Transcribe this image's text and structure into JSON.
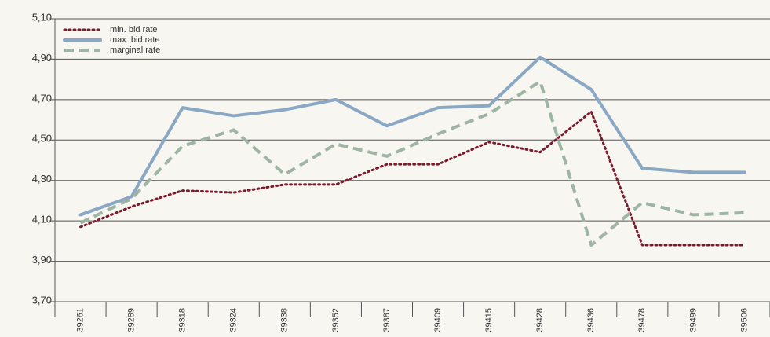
{
  "chart_data": {
    "type": "line",
    "categories": [
      "39261",
      "39289",
      "39318",
      "39324",
      "39338",
      "39352",
      "39387",
      "39409",
      "39415",
      "39428",
      "39436",
      "39478",
      "39499",
      "39506"
    ],
    "series": [
      {
        "name": "min. bid rate",
        "color": "#7a1a2c",
        "style": "dotted",
        "values": [
          4.07,
          4.17,
          4.25,
          4.24,
          4.28,
          4.28,
          4.38,
          4.38,
          4.49,
          4.44,
          4.64,
          3.98,
          3.98,
          3.98
        ]
      },
      {
        "name": "max. bid rate",
        "color": "#8aa7c4",
        "style": "solid",
        "values": [
          4.13,
          4.22,
          4.66,
          4.62,
          4.65,
          4.7,
          4.57,
          4.66,
          4.67,
          4.91,
          4.75,
          4.36,
          4.34,
          4.34
        ]
      },
      {
        "name": "marginal rate",
        "color": "#9fb5a4",
        "style": "dashed",
        "values": [
          4.09,
          4.21,
          4.47,
          4.55,
          4.33,
          4.48,
          4.42,
          4.53,
          4.63,
          4.79,
          3.98,
          4.19,
          4.13,
          4.14
        ]
      }
    ],
    "ylim": [
      3.7,
      5.1
    ],
    "yticks": [
      {
        "value": 3.7,
        "label": "3,70"
      },
      {
        "value": 3.9,
        "label": "3,90"
      },
      {
        "value": 4.1,
        "label": "4,10"
      },
      {
        "value": 4.3,
        "label": "4,30"
      },
      {
        "value": 4.5,
        "label": "4,50"
      },
      {
        "value": 4.7,
        "label": "4,70"
      },
      {
        "value": 4.9,
        "label": "4,90"
      },
      {
        "value": 5.1,
        "label": "5,10"
      }
    ],
    "grid": true,
    "legend": "upper left"
  }
}
